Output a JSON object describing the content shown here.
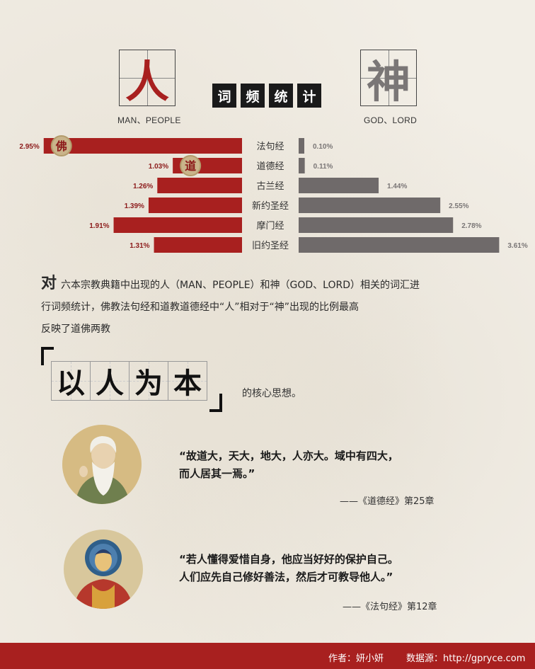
{
  "header": {
    "left_glyph": "人",
    "left_caption": "MAN、PEOPLE",
    "right_glyph": "神",
    "right_caption": "GOD、LORD",
    "title_chars": [
      "词",
      "频",
      "统",
      "计"
    ]
  },
  "colors": {
    "man_bar": "#a8201f",
    "god_bar": "#6f6a6a",
    "man_label": "#8c1a1a",
    "god_label": "#7a7676",
    "footer": "#a8201f"
  },
  "chart_data": {
    "type": "bar",
    "orientation": "horizontal-diverging",
    "categories": [
      "法句经",
      "道德经",
      "古兰经",
      "新约圣经",
      "摩门经",
      "旧约圣经"
    ],
    "series": [
      {
        "name": "MAN、PEOPLE",
        "values": [
          2.95,
          1.03,
          1.26,
          1.39,
          1.91,
          1.31
        ],
        "labels": [
          "2.95%",
          "1.03%",
          "1.26%",
          "1.39%",
          "1.91%",
          "1.31%"
        ]
      },
      {
        "name": "GOD、LORD",
        "values": [
          0.1,
          0.11,
          1.44,
          2.55,
          2.78,
          3.61
        ],
        "labels": [
          "0.10%",
          "0.11%",
          "1.44%",
          "2.55%",
          "2.78%",
          "3.61%"
        ]
      }
    ],
    "markers": [
      {
        "category": "法句经",
        "text": "佛"
      },
      {
        "category": "道德经",
        "text": "道"
      }
    ]
  },
  "intro": {
    "lead": "对",
    "line1": "六本宗教典籍中出现的人（MAN、PEOPLE）和神（GOD、LORD）相关的词汇进",
    "line2": "行词频统计，佛教法句经和道教道德经中“人”相对于“神”出现的比例最高",
    "line3": "反映了道佛两教"
  },
  "calligraphy": {
    "chars": [
      "以",
      "人",
      "为",
      "本"
    ],
    "tail": "的核心思想。"
  },
  "quotes": [
    {
      "line1": "“故道大，天大，地大，人亦大。域中有四大，",
      "line2": "而人居其一焉。”",
      "cite": "——《道德经》第25章"
    },
    {
      "line1": "“若人懂得爱惜自身，他应当好好的保护自己。",
      "line2": "人们应先自己修好善法，然后才可教导他人。”",
      "cite": "——《法句经》第12章"
    }
  ],
  "footer": {
    "author": "作者：妍小妍",
    "source": "数据源：http://gpryce.com"
  }
}
